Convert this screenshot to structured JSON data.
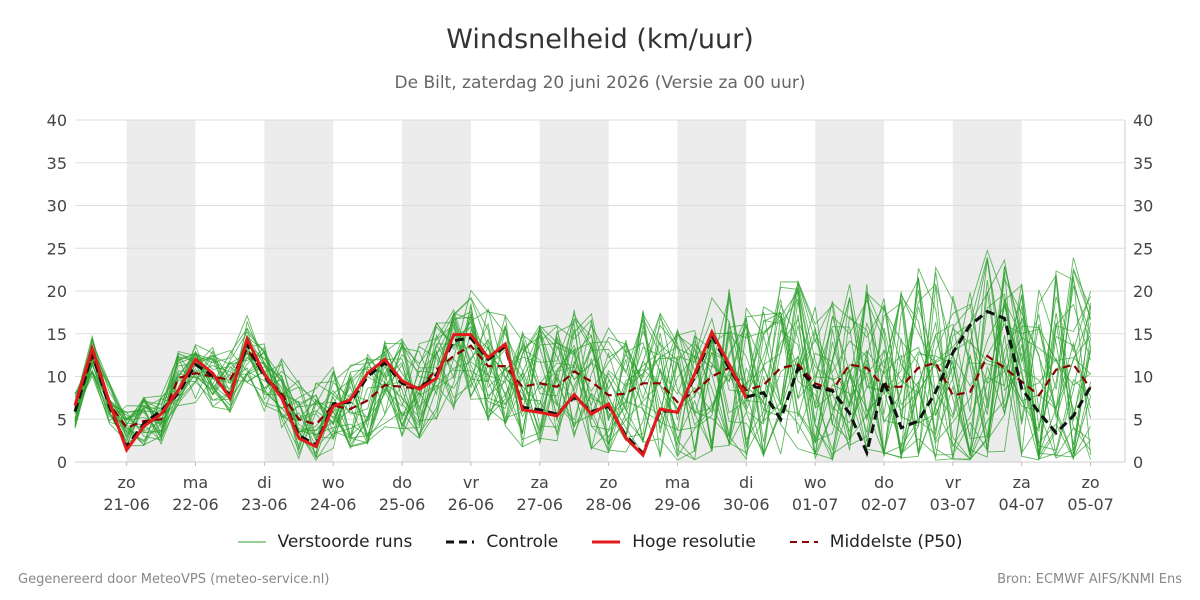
{
  "header": {
    "title": "Windsnelheid (km/uur)",
    "subtitle": "De Bilt, zaterdag 20 juni 2026 (Versie za 00 uur)"
  },
  "footer": {
    "left": "Gegenereerd door MeteoVPS (meteo-service.nl)",
    "right": "Bron: ECMWF AIFS/KNMI Ens"
  },
  "legend": [
    {
      "label": "Verstoorde runs",
      "color": "#2ca02c",
      "style": "solid-thin"
    },
    {
      "label": "Controle",
      "color": "#111111",
      "style": "dashed"
    },
    {
      "label": "Hoge resolutie",
      "color": "#e31a1c",
      "style": "solid-thick"
    },
    {
      "label": "Middelste (P50)",
      "color": "#8b0000",
      "style": "dashed"
    }
  ],
  "chart_data": {
    "type": "line",
    "ylim": [
      0,
      40
    ],
    "yticks": [
      0,
      5,
      10,
      15,
      20,
      25,
      30,
      35,
      40
    ],
    "xlim": [
      -0.75,
      14.5
    ],
    "grid": true,
    "weekend_shading_days": [
      0,
      7,
      8
    ],
    "shaded_day_ranges": [
      [
        0,
        1
      ],
      [
        2,
        3
      ],
      [
        4,
        5
      ],
      [
        6,
        7
      ],
      [
        8,
        9
      ],
      [
        10,
        11
      ],
      [
        12,
        13
      ]
    ],
    "x_ticks": [
      {
        "day": "zo",
        "date": "21-06"
      },
      {
        "day": "ma",
        "date": "22-06"
      },
      {
        "day": "di",
        "date": "23-06"
      },
      {
        "day": "wo",
        "date": "24-06"
      },
      {
        "day": "do",
        "date": "25-06"
      },
      {
        "day": "vr",
        "date": "26-06"
      },
      {
        "day": "za",
        "date": "27-06"
      },
      {
        "day": "zo",
        "date": "28-06"
      },
      {
        "day": "ma",
        "date": "29-06"
      },
      {
        "day": "di",
        "date": "30-06"
      },
      {
        "day": "wo",
        "date": "01-07"
      },
      {
        "day": "do",
        "date": "02-07"
      },
      {
        "day": "vr",
        "date": "03-07"
      },
      {
        "day": "za",
        "date": "04-07"
      },
      {
        "day": "zo",
        "date": "05-07"
      }
    ],
    "x_step_days": 0.25,
    "x_start_day": -0.75,
    "series": [
      {
        "name": "Hoge resolutie",
        "values": [
          6.6,
          13.3,
          7.0,
          1.4,
          4.2,
          5.6,
          8.4,
          12.0,
          10.4,
          7.5,
          14.4,
          10.3,
          7.5,
          2.8,
          1.8,
          6.5,
          7.3,
          10.4,
          12.0,
          9.5,
          8.5,
          9.8,
          14.9,
          14.9,
          12.2,
          13.8,
          6.1,
          5.8,
          5.4,
          7.9,
          5.6,
          6.8,
          2.8,
          0.8,
          6.2,
          5.8,
          10.3,
          15.2,
          11.4,
          7.5
        ]
      },
      {
        "name": "Controle",
        "values": [
          5.9,
          12.6,
          6.5,
          1.8,
          4.5,
          6.0,
          8.0,
          11.4,
          10.1,
          7.8,
          13.8,
          10.0,
          7.7,
          3.1,
          2.0,
          6.8,
          7.0,
          10.0,
          11.6,
          9.2,
          8.6,
          10.2,
          14.2,
          14.5,
          12.0,
          13.5,
          6.4,
          6.1,
          5.6,
          7.6,
          5.9,
          6.5,
          3.1,
          1.0,
          6.0,
          5.9,
          10.0,
          14.8,
          11.0,
          7.6,
          8.1,
          5.0,
          11.0,
          8.8,
          8.3,
          5.7,
          1.1,
          9.5,
          4.0,
          4.8,
          8.2,
          12.8,
          16.0,
          17.6,
          16.8,
          8.6,
          5.8,
          3.4,
          5.4,
          8.8
        ]
      },
      {
        "name": "Middelste (P50)",
        "values": [
          6.0,
          12.5,
          6.8,
          4.0,
          4.8,
          5.0,
          9.8,
          10.4,
          10.0,
          9.6,
          13.2,
          10.2,
          8.0,
          5.0,
          4.4,
          6.6,
          6.2,
          7.2,
          9.0,
          8.8,
          8.6,
          10.8,
          12.4,
          13.6,
          11.2,
          11.2,
          8.8,
          9.2,
          8.8,
          10.6,
          9.4,
          7.8,
          8.0,
          9.2,
          9.2,
          7.0,
          8.2,
          10.0,
          11.0,
          8.4,
          9.0,
          11.0,
          11.4,
          9.2,
          8.4,
          11.4,
          11.0,
          8.8,
          8.8,
          11.0,
          11.6,
          7.8,
          8.2,
          12.4,
          11.0,
          9.4,
          7.8,
          10.8,
          11.4,
          8.6
        ]
      }
    ],
    "ensemble_count": 30,
    "ensemble_color": "#2ca02c"
  }
}
